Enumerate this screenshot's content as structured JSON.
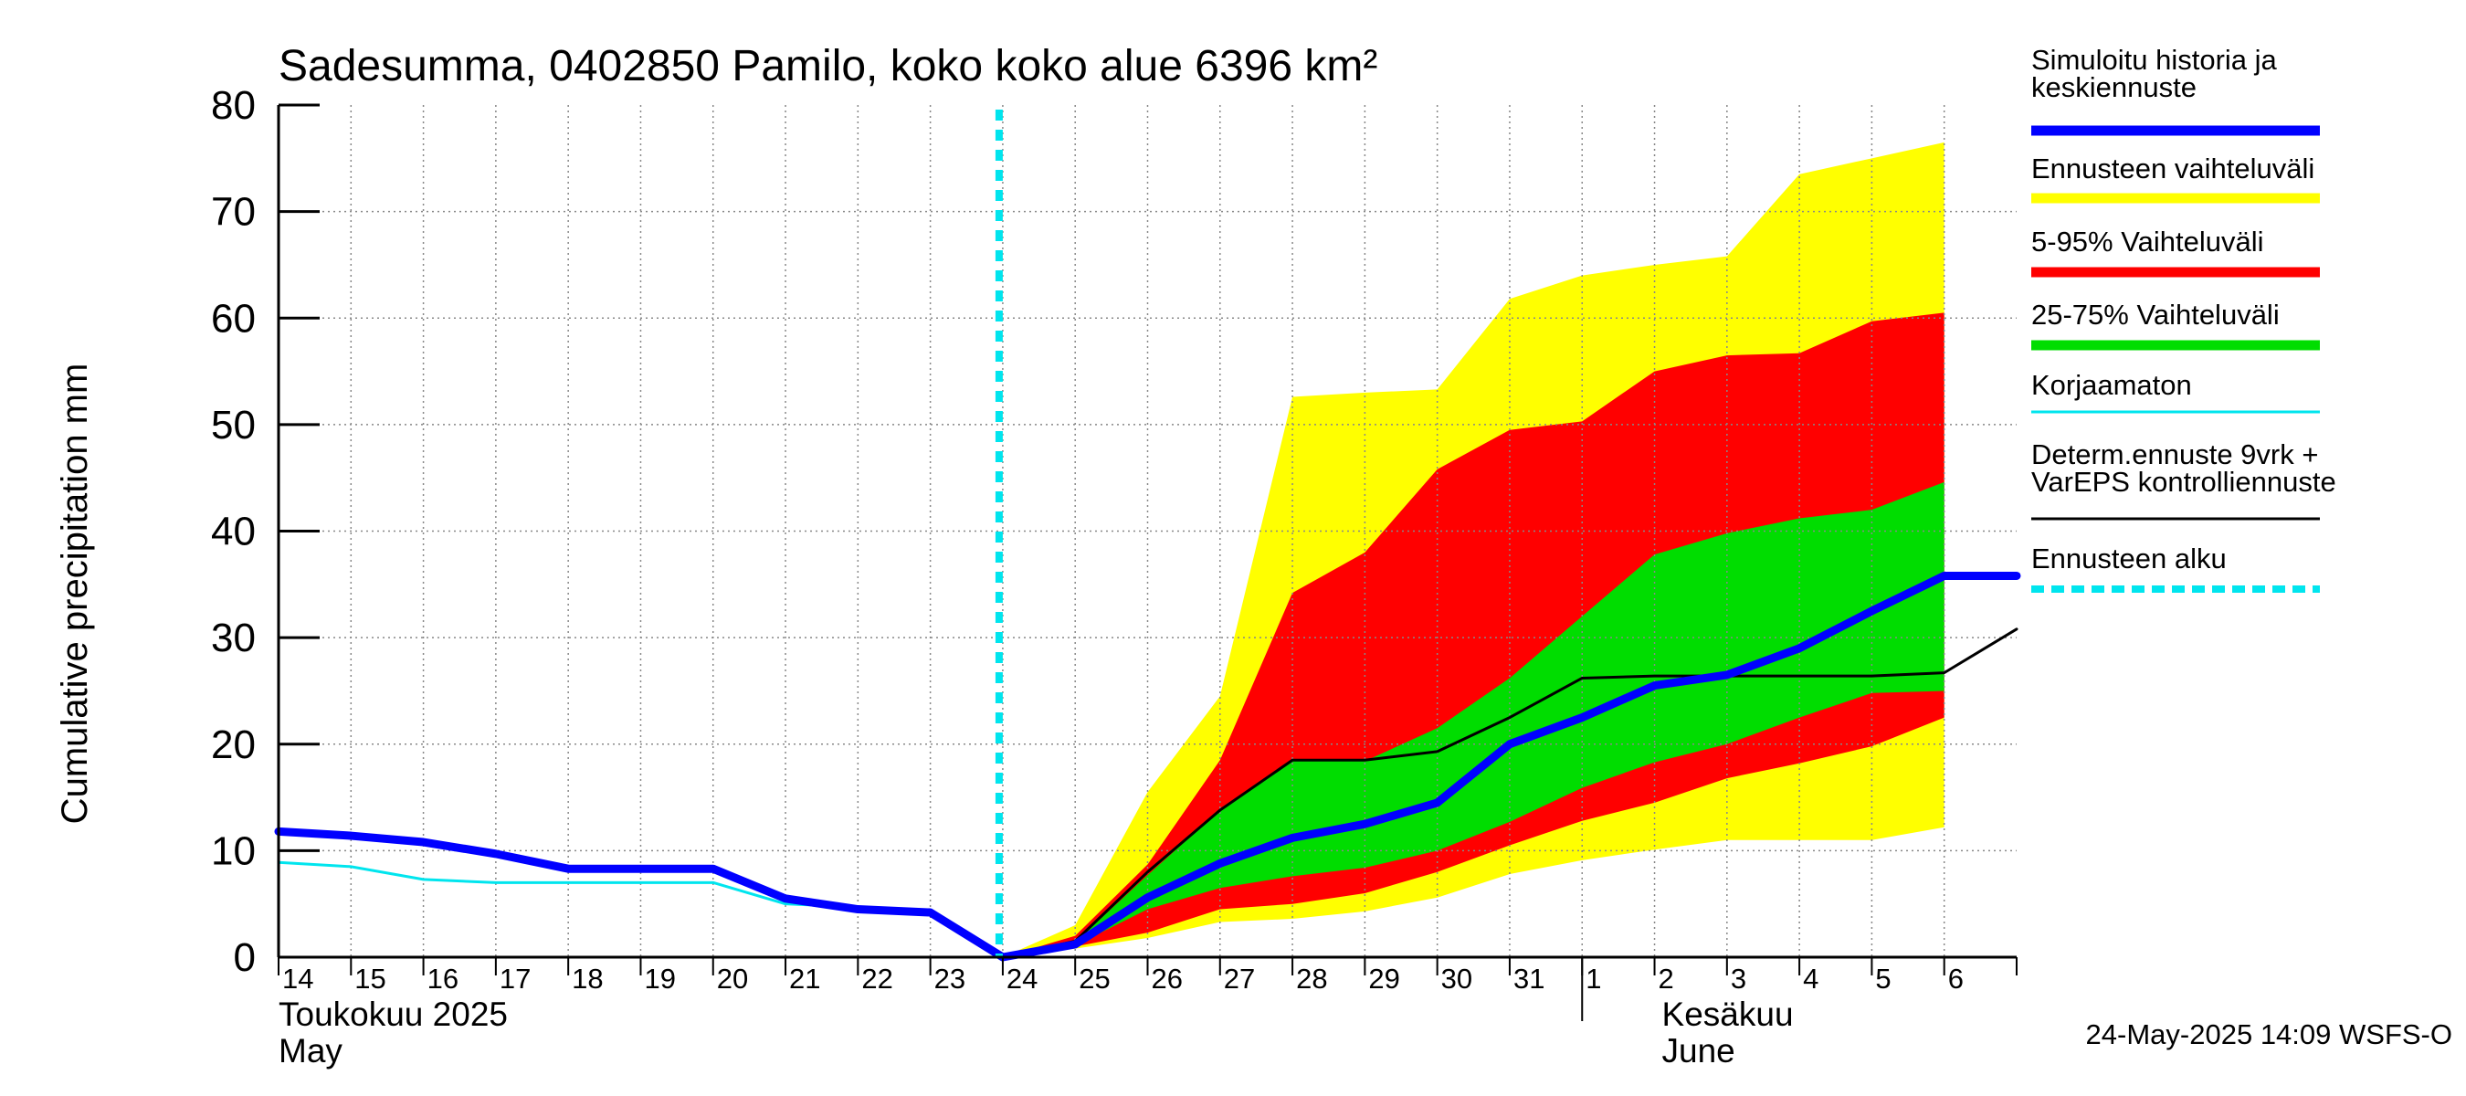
{
  "chart_data": {
    "type": "line",
    "title": "Sadesumma, 0402850 Pamilo, koko koko alue 6396 km²",
    "ylabel": "Cumulative precipitation   mm",
    "ylim": [
      0,
      80
    ],
    "yticks": [
      "0",
      "10",
      "20",
      "30",
      "40",
      "50",
      "60",
      "70",
      "80"
    ],
    "grid": true,
    "legend_position": "right",
    "x_day_labels": [
      "14",
      "15",
      "16",
      "17",
      "18",
      "19",
      "20",
      "21",
      "22",
      "23",
      "24",
      "25",
      "26",
      "27",
      "28",
      "29",
      "30",
      "31",
      "1",
      "2",
      "3",
      "4",
      "5",
      "6"
    ],
    "month_labels": {
      "may_fi": "Toukokuu  2025",
      "may_en": "May",
      "june_fi": "Kesäkuu",
      "june_en": "June"
    },
    "forecast_start_index": 10,
    "colors": {
      "yellow": "#ffff00",
      "red": "#ff0000",
      "green": "#00dd00",
      "blue": "#0000ff",
      "cyan": "#00e5ee",
      "black": "#000000",
      "grid": "#888888"
    },
    "series": [
      {
        "name": "Simuloitu historia ja keskiennuste",
        "values": [
          11.8,
          11.4,
          10.8,
          9.7,
          8.3,
          8.3,
          8.3,
          5.5,
          4.5,
          4.2,
          0,
          1.2,
          5.6,
          8.8,
          11.2,
          12.5,
          14.5,
          20.0,
          22.5,
          25.5,
          26.5,
          29.0,
          32.5,
          35.8,
          35.8
        ]
      },
      {
        "name": "Korjaamaton",
        "values": [
          8.9,
          8.5,
          7.3,
          7.0,
          7.0,
          7.0,
          7.0,
          5.0,
          4.7,
          4.2,
          0
        ]
      },
      {
        "name": "Determ.ennuste 9vrk + VarEPS kontrolliennuste",
        "values": [
          null,
          null,
          null,
          null,
          null,
          null,
          null,
          null,
          null,
          null,
          0,
          1.5,
          8.0,
          13.8,
          18.5,
          18.5,
          19.3,
          22.5,
          26.2,
          26.4,
          26.4,
          26.4,
          26.4,
          26.7,
          30.8
        ]
      }
    ],
    "bands": {
      "min": [
        0,
        0.8,
        1.8,
        3.3,
        3.6,
        4.3,
        5.6,
        7.8,
        9.1,
        10.1,
        11.0,
        11.0,
        11.0,
        12.2
      ],
      "p5": [
        0,
        1.0,
        2.3,
        4.5,
        5.0,
        6.0,
        8.0,
        10.5,
        12.8,
        14.5,
        16.8,
        18.2,
        19.8,
        22.5
      ],
      "p25": [
        0,
        1.1,
        4.5,
        6.5,
        7.6,
        8.4,
        10.0,
        12.7,
        15.9,
        18.3,
        20.0,
        22.5,
        24.8,
        25.0
      ],
      "p75": [
        0,
        1.4,
        7.7,
        13.8,
        18.4,
        18.4,
        21.5,
        26.2,
        32.0,
        37.8,
        39.8,
        41.2,
        42.0,
        44.6
      ],
      "p95": [
        0,
        2.0,
        8.7,
        18.5,
        34.2,
        38.0,
        45.8,
        49.5,
        50.3,
        55.0,
        56.5,
        56.7,
        59.7,
        60.5
      ],
      "max": [
        0,
        3.0,
        15.5,
        24.5,
        52.6,
        53.0,
        53.3,
        61.8,
        64.0,
        65.0,
        65.8,
        73.5,
        75.0,
        76.5
      ]
    },
    "bands_x_start_index": 10,
    "legend": [
      {
        "label_lines": [
          "Simuloitu historia ja",
          "keskiennuste"
        ],
        "color": "#0000ff",
        "style": "thick"
      },
      {
        "label_lines": [
          "Ennusteen vaihteluväli"
        ],
        "color": "#ffff00",
        "style": "thick"
      },
      {
        "label_lines": [
          "5-95% Vaihteluväli"
        ],
        "color": "#ff0000",
        "style": "thick"
      },
      {
        "label_lines": [
          "25-75% Vaihteluväli"
        ],
        "color": "#00dd00",
        "style": "thick"
      },
      {
        "label_lines": [
          "Korjaamaton"
        ],
        "color": "#00e5ee",
        "style": "thin"
      },
      {
        "label_lines": [
          "Determ.ennuste 9vrk +",
          "VarEPS kontrolliennuste"
        ],
        "color": "#000000",
        "style": "thin"
      },
      {
        "label_lines": [
          "Ennusteen alku"
        ],
        "color": "#00e5ee",
        "style": "dashed"
      }
    ],
    "footer": "24-May-2025 14:09 WSFS-O"
  }
}
